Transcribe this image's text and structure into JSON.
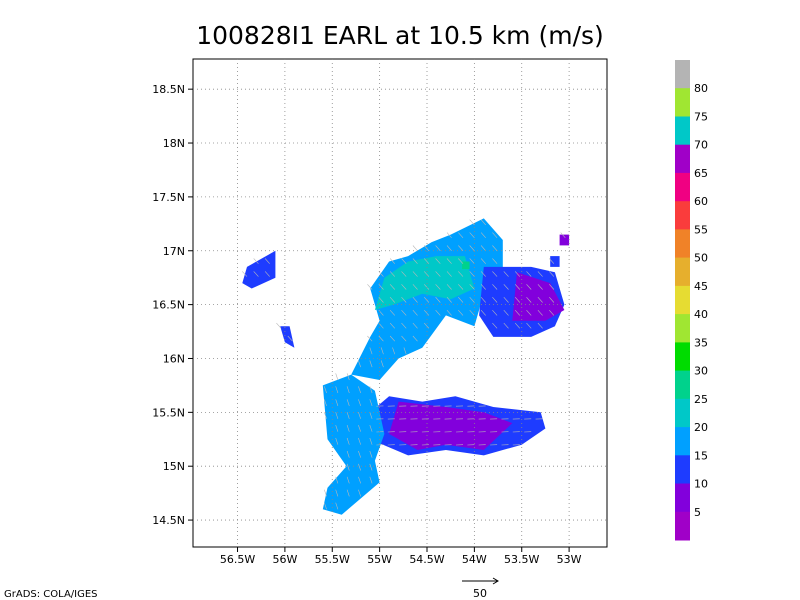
{
  "chart_data": {
    "type": "heatmap",
    "title": "100828I1 EARL at 10.5 km (m/s)",
    "xlabel": "",
    "ylabel": "",
    "x_tick_labels": [
      "56.5W",
      "56W",
      "55.5W",
      "55W",
      "54.5W",
      "54W",
      "53.5W",
      "53W"
    ],
    "x_ticks": [
      -56.5,
      -56.0,
      -55.5,
      -55.0,
      -54.5,
      -54.0,
      -53.5,
      -53.0
    ],
    "y_tick_labels": [
      "14.5N",
      "15N",
      "15.5N",
      "16N",
      "16.5N",
      "17N",
      "17.5N",
      "18N",
      "18.5N"
    ],
    "y_ticks": [
      14.5,
      15.0,
      15.5,
      16.0,
      16.5,
      17.0,
      17.5,
      18.0,
      18.5
    ],
    "xlim": [
      -56.97,
      -52.6
    ],
    "ylim": [
      14.25,
      18.78
    ],
    "grid": true,
    "colorbar": {
      "labels": [
        "5",
        "10",
        "15",
        "20",
        "25",
        "30",
        "35",
        "40",
        "45",
        "50",
        "55",
        "60",
        "65",
        "70",
        "75",
        "80"
      ],
      "levels": [
        5,
        10,
        15,
        20,
        25,
        30,
        35,
        40,
        45,
        50,
        55,
        60,
        65,
        70,
        75,
        80
      ],
      "colors": [
        "#a000c8",
        "#8200dc",
        "#1e3cff",
        "#00a0ff",
        "#00c8c8",
        "#00d28c",
        "#00dc00",
        "#a0e632",
        "#e6dc32",
        "#e6af2d",
        "#f08228",
        "#fa3c3c",
        "#f00082",
        "#a000c8",
        "#00c8c8",
        "#a0e632",
        "#b4b4b4"
      ]
    },
    "regions": [
      {
        "name": "main-band",
        "speed_class": "15-20",
        "poly": [
          [
            -55.3,
            15.85
          ],
          [
            -55.1,
            16.2
          ],
          [
            -55.0,
            16.35
          ],
          [
            -55.1,
            16.65
          ],
          [
            -54.9,
            16.9
          ],
          [
            -54.7,
            16.95
          ],
          [
            -54.45,
            17.08
          ],
          [
            -54.25,
            17.15
          ],
          [
            -53.9,
            17.3
          ],
          [
            -53.7,
            17.1
          ],
          [
            -53.7,
            16.7
          ],
          [
            -53.9,
            16.6
          ],
          [
            -54.0,
            16.3
          ],
          [
            -54.3,
            16.4
          ],
          [
            -54.55,
            16.1
          ],
          [
            -54.8,
            16.0
          ],
          [
            -55.0,
            15.8
          ]
        ]
      },
      {
        "name": "main-band-core",
        "speed_class": "20-25",
        "poly": [
          [
            -55.05,
            16.45
          ],
          [
            -54.95,
            16.75
          ],
          [
            -54.7,
            16.9
          ],
          [
            -54.4,
            16.95
          ],
          [
            -54.1,
            16.95
          ],
          [
            -54.0,
            16.65
          ],
          [
            -54.25,
            16.55
          ],
          [
            -54.55,
            16.6
          ],
          [
            -54.85,
            16.5
          ]
        ]
      },
      {
        "name": "east-cell",
        "speed_class": "10-15",
        "poly": [
          [
            -53.9,
            16.85
          ],
          [
            -53.4,
            16.85
          ],
          [
            -53.15,
            16.8
          ],
          [
            -53.05,
            16.5
          ],
          [
            -53.15,
            16.3
          ],
          [
            -53.4,
            16.2
          ],
          [
            -53.8,
            16.2
          ],
          [
            -53.95,
            16.4
          ]
        ]
      },
      {
        "name": "east-cell-core",
        "speed_class": "5-10",
        "poly": [
          [
            -53.55,
            16.8
          ],
          [
            -53.2,
            16.7
          ],
          [
            -53.05,
            16.45
          ],
          [
            -53.25,
            16.35
          ],
          [
            -53.6,
            16.35
          ]
        ]
      },
      {
        "name": "south-band",
        "speed_class": "10-15",
        "poly": [
          [
            -55.1,
            15.5
          ],
          [
            -54.9,
            15.65
          ],
          [
            -54.55,
            15.6
          ],
          [
            -54.2,
            15.65
          ],
          [
            -53.8,
            15.55
          ],
          [
            -53.3,
            15.5
          ],
          [
            -53.25,
            15.35
          ],
          [
            -53.5,
            15.2
          ],
          [
            -53.9,
            15.1
          ],
          [
            -54.3,
            15.15
          ],
          [
            -54.7,
            15.1
          ],
          [
            -55.1,
            15.25
          ]
        ]
      },
      {
        "name": "south-band-core",
        "speed_class": "5-10",
        "poly": [
          [
            -54.8,
            15.6
          ],
          [
            -54.3,
            15.55
          ],
          [
            -53.9,
            15.5
          ],
          [
            -53.6,
            15.4
          ],
          [
            -53.9,
            15.15
          ],
          [
            -54.3,
            15.2
          ],
          [
            -54.6,
            15.15
          ],
          [
            -54.9,
            15.3
          ]
        ]
      },
      {
        "name": "southwest-arm",
        "speed_class": "15-20",
        "poly": [
          [
            -55.6,
            15.75
          ],
          [
            -55.3,
            15.85
          ],
          [
            -55.05,
            15.7
          ],
          [
            -54.95,
            15.3
          ],
          [
            -55.05,
            15.05
          ],
          [
            -55.0,
            14.85
          ],
          [
            -55.2,
            14.7
          ],
          [
            -55.4,
            14.55
          ],
          [
            -55.6,
            14.6
          ],
          [
            -55.55,
            14.8
          ],
          [
            -55.35,
            15.0
          ],
          [
            -55.55,
            15.25
          ]
        ]
      },
      {
        "name": "northwest-blob",
        "speed_class": "10-15",
        "poly": [
          [
            -56.4,
            16.85
          ],
          [
            -56.1,
            17.0
          ],
          [
            -56.1,
            16.75
          ],
          [
            -56.35,
            16.65
          ],
          [
            -56.45,
            16.7
          ]
        ]
      },
      {
        "name": "west-small",
        "speed_class": "10-15",
        "poly": [
          [
            -56.05,
            16.3
          ],
          [
            -55.95,
            16.3
          ],
          [
            -55.9,
            16.1
          ],
          [
            -56.0,
            16.15
          ]
        ]
      },
      {
        "name": "northeast-speck",
        "speed_class": "5-10",
        "poly": [
          [
            -53.1,
            17.15
          ],
          [
            -53.0,
            17.15
          ],
          [
            -53.0,
            17.05
          ],
          [
            -53.1,
            17.05
          ]
        ]
      },
      {
        "name": "mid-east-speck",
        "speed_class": "10-15",
        "poly": [
          [
            -53.2,
            16.95
          ],
          [
            -53.1,
            16.95
          ],
          [
            -53.1,
            16.85
          ],
          [
            -53.2,
            16.85
          ]
        ]
      },
      {
        "name": "local-max",
        "speed_class": "25-30",
        "poly": [
          [
            -54.13,
            16.9
          ],
          [
            -54.05,
            16.9
          ],
          [
            -54.05,
            16.83
          ],
          [
            -54.13,
            16.83
          ]
        ]
      }
    ],
    "wind_vectors_note": "streamline arrows drawn in grey over the field",
    "reference_vector": {
      "label": "50"
    }
  },
  "credit": "GrADS: COLA/IGES"
}
